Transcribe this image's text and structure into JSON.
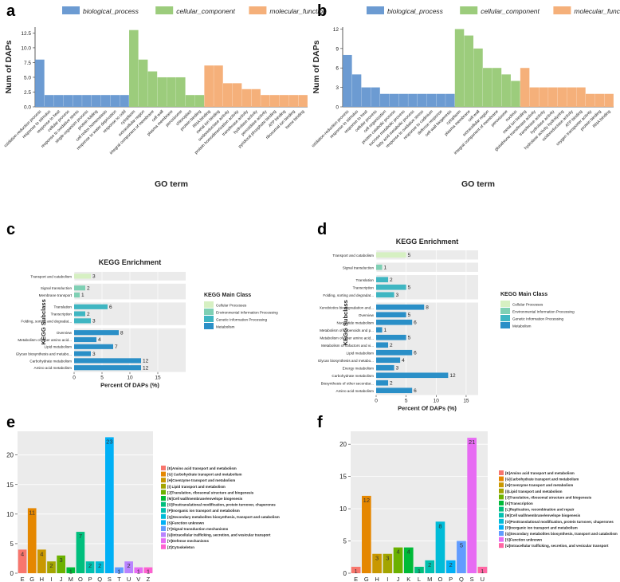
{
  "panel_letters": [
    "a",
    "b",
    "c",
    "d",
    "e",
    "f"
  ],
  "colors": {
    "bp": "#6c9bd2",
    "cc": "#9ccc7c",
    "mf": "#f5b07a",
    "grid_bg": "#ebebeb",
    "kegg_cellular": "#d6f0c2",
    "kegg_env": "#7fd0b4",
    "kegg_genetic": "#3fb6c2",
    "kegg_metab": "#2a8fc7",
    "cog": [
      "#f8766d",
      "#e58700",
      "#c99800",
      "#a3a500",
      "#6bb100",
      "#00ba38",
      "#00bf7d",
      "#00c0af",
      "#00bcd8",
      "#00b0f6",
      "#619cff",
      "#b983ff",
      "#e76bf3",
      "#fd61d1",
      "#ff67a4"
    ]
  },
  "chart_data": [
    {
      "id": "a",
      "type": "bar",
      "xlabel": "GO term",
      "ylabel": "Num of DAPs",
      "ylim": [
        0,
        13.5
      ],
      "yticks": [
        0.0,
        2.5,
        5.0,
        7.5,
        10.0,
        12.5
      ],
      "ytick_labels": [
        "0.0",
        "2.5",
        "5.0",
        "7.5",
        "10.0",
        "12.5"
      ],
      "legend": [
        "biological_process",
        "cellular_component",
        "molecular_function"
      ],
      "categories": [
        "oxidation-reduction process",
        "response to stimulus",
        "response to heat",
        "cellular process",
        "response to oxidative stress",
        "single-organism process",
        "protein folding",
        "cell redox homeostasis",
        "response to water deprivation",
        "response to cold",
        "cytoplasm",
        "extracellular region",
        "integral component of membrane",
        "cell wall",
        "plasma membrane",
        "peroxisome",
        "chloroplast",
        "protein binding",
        "RNA binding",
        "metal ion binding",
        "oxidoreductase activity",
        "protein homodimerization activity",
        "transferase activity",
        "hydrolase activity",
        "peroxidase activity",
        "pyridoxal phosphate binding",
        "ATP binding",
        "ribosomal ion binding",
        "heme binding"
      ],
      "groups": [
        0,
        0,
        0,
        0,
        0,
        0,
        0,
        0,
        0,
        0,
        1,
        1,
        1,
        1,
        1,
        1,
        1,
        1,
        2,
        2,
        2,
        2,
        2,
        2,
        2,
        2,
        2,
        2,
        2
      ],
      "values": [
        8,
        2,
        2,
        2,
        2,
        2,
        2,
        2,
        2,
        2,
        13,
        8,
        6,
        5,
        5,
        5,
        2,
        2,
        7,
        7,
        4,
        4,
        3,
        3,
        2,
        2,
        2,
        2,
        2
      ]
    },
    {
      "id": "b",
      "type": "bar",
      "xlabel": "GO term",
      "ylabel": "Num of DAPs",
      "ylim": [
        0,
        12.3
      ],
      "yticks": [
        0,
        3,
        6,
        9,
        12
      ],
      "ytick_labels": [
        "0",
        "3",
        "6",
        "9",
        "12"
      ],
      "legend": [
        "biological_process",
        "cellular_component",
        "molecular_function"
      ],
      "categories": [
        "oxidation-reduction process",
        "response to stimulus",
        "response to heat",
        "cellular process",
        "cell organization",
        "protein catabolic process",
        "sucrose metabolic process",
        "fatty acid metabolic process",
        "response to oxidative stress",
        "response to cadmium",
        "defense response",
        "cell wall biogenesis",
        "cytoplasm",
        "plasma membrane",
        "cell wall",
        "extracellular region",
        "integral component of membrane",
        "peroxisome",
        "nucleus",
        "metal ion binding",
        "glutathione transferase activity",
        "transferase activity",
        "hydrolase activity",
        "hydrolase activity hydrolyzing",
        "oxidoreductase activity",
        "ATP binding",
        "oxygen transporter activity",
        "protein binding",
        "RNA binding"
      ],
      "groups": [
        0,
        0,
        0,
        0,
        0,
        0,
        0,
        0,
        0,
        0,
        0,
        0,
        1,
        1,
        1,
        1,
        1,
        1,
        1,
        2,
        2,
        2,
        2,
        2,
        2,
        2,
        2,
        2,
        2
      ],
      "values": [
        8,
        5,
        3,
        3,
        2,
        2,
        2,
        2,
        2,
        2,
        2,
        2,
        12,
        11,
        9,
        6,
        6,
        5,
        4,
        6,
        3,
        3,
        3,
        3,
        3,
        3,
        2,
        2,
        2
      ]
    },
    {
      "id": "c",
      "type": "bar",
      "orientation": "horizontal",
      "title": "KEGG Enrichment",
      "xlabel": "Percent Of DAPs (%)",
      "ylabel": "KEGG Subclass",
      "xlim": [
        0,
        20
      ],
      "xticks": [
        0,
        5,
        10,
        15
      ],
      "legend_title": "KEGG Main Class",
      "legend": [
        "Cellular Processes",
        "Environmental Information Processing",
        "Genetic Information Processing",
        "Metabolism"
      ],
      "facets": [
        {
          "class": 0,
          "rows": [
            {
              "label": "Transport and catabolism",
              "value": 3
            }
          ]
        },
        {
          "class": 1,
          "rows": [
            {
              "label": "Signal transduction",
              "value": 2
            },
            {
              "label": "Membrane transport",
              "value": 1
            }
          ]
        },
        {
          "class": 2,
          "rows": [
            {
              "label": "Translation",
              "value": 6
            },
            {
              "label": "Transcription",
              "value": 2
            },
            {
              "label": "Folding, sorting and degradat...",
              "value": 3
            }
          ]
        },
        {
          "class": 3,
          "rows": [
            {
              "label": "Overview",
              "value": 8
            },
            {
              "label": "Metabolism of other amino acid...",
              "value": 4
            },
            {
              "label": "Lipid metabolism",
              "value": 7
            },
            {
              "label": "Glycan biosynthesis and metabo...",
              "value": 3
            },
            {
              "label": "Carbohydrate metabolism",
              "value": 12
            },
            {
              "label": "Amino acid metabolism",
              "value": 12
            }
          ]
        }
      ]
    },
    {
      "id": "d",
      "type": "bar",
      "orientation": "horizontal",
      "title": "KEGG Enrichment",
      "xlabel": "Percent Of DAPs (%)",
      "ylabel": "KEGG Subclass",
      "xlim": [
        0,
        17
      ],
      "xticks": [
        0,
        5,
        10,
        15
      ],
      "legend_title": "KEGG Main Class",
      "legend": [
        "Cellular Processes",
        "Environmental Information Processing",
        "Genetic Information Processing",
        "Metabolism"
      ],
      "facets": [
        {
          "class": 0,
          "rows": [
            {
              "label": "Transport and catabolism",
              "value": 5
            }
          ]
        },
        {
          "class": 1,
          "rows": [
            {
              "label": "Signal transduction",
              "value": 1
            }
          ]
        },
        {
          "class": 2,
          "rows": [
            {
              "label": "Translation",
              "value": 2
            },
            {
              "label": "Transcription",
              "value": 5
            },
            {
              "label": "Folding, sorting and degradat...",
              "value": 3
            }
          ]
        },
        {
          "class": 3,
          "rows": [
            {
              "label": "Xenobiotics biodegradation and...",
              "value": 8
            },
            {
              "label": "Overview",
              "value": 5
            },
            {
              "label": "Nucleotide metabolism",
              "value": 6
            },
            {
              "label": "Metabolism of terpenoids and p...",
              "value": 1
            },
            {
              "label": "Metabolism of other amino acid...",
              "value": 5
            },
            {
              "label": "Metabolism of cofactors and vi...",
              "value": 2
            },
            {
              "label": "Lipid metabolism",
              "value": 6
            },
            {
              "label": "Glycan biosynthesis and metabo...",
              "value": 4
            },
            {
              "label": "Energy metabolism",
              "value": 3
            },
            {
              "label": "Carbohydrate metabolism",
              "value": 12
            },
            {
              "label": "Biosynthesis of other secondar...",
              "value": 2
            },
            {
              "label": "Amino acid metabolism",
              "value": 6
            }
          ]
        }
      ]
    },
    {
      "id": "e",
      "type": "bar",
      "ylim": [
        0,
        24
      ],
      "yticks": [
        0,
        5,
        10,
        15,
        20
      ],
      "categories": [
        "E",
        "G",
        "H",
        "I",
        "J",
        "M",
        "O",
        "P",
        "Q",
        "S",
        "T",
        "U",
        "V",
        "Z"
      ],
      "values": [
        4,
        11,
        4,
        2,
        3,
        1,
        7,
        2,
        2,
        23,
        1,
        2,
        1,
        1
      ],
      "color_index": [
        0,
        1,
        2,
        3,
        4,
        5,
        6,
        7,
        8,
        9,
        10,
        11,
        12,
        13
      ],
      "legend": [
        "[E]Amino acid transport and metabolism",
        "[G]      Carbohydrate transport and metabolism",
        "[H]Coenzyme transport and metabolism",
        "[I]  Lipid transport and metabolism",
        "[J]Translation, ribosomal structure and biogenesis",
        "[M]Cell wall/membrane/envelope biogenesis",
        "[O]Posttranslational modification, protein turnover, chaperones",
        "[P]Inorganic ion transport and metabolism",
        "[Q]Secondary metabolites biosynthesis, transport and catabolism",
        "[S]Function unknown",
        "[T]Signal transduction mechanisms",
        "[U]Intracellular trafficking, secretion, and vesicular transport",
        "[V]Defense mechanisms",
        "[Z]Cytoskeleton"
      ]
    },
    {
      "id": "f",
      "type": "bar",
      "ylim": [
        0,
        22
      ],
      "yticks": [
        0,
        5,
        10,
        15,
        20
      ],
      "categories": [
        "E",
        "G",
        "H",
        "I",
        "J",
        "K",
        "L",
        "M",
        "O",
        "P",
        "Q",
        "S",
        "U"
      ],
      "values": [
        1,
        12,
        3,
        3,
        4,
        4,
        1,
        2,
        8,
        2,
        5,
        21,
        1
      ],
      "color_index": [
        0,
        1,
        2,
        3,
        4,
        5,
        6,
        7,
        8,
        9,
        10,
        12,
        14
      ],
      "legend": [
        "[E]Amino acid transport and metabolism",
        "[G]Carbohydrate transport and metabolism",
        "[H]Coenzyme transport and metabolism",
        "[I]Lipid transport and metabolism",
        "[J]Translation, ribosomal structure and biogenesis",
        "[K]Transcription",
        "[L]Replication, recombination and repair",
        "[M]Cell wall/membrane/envelope biogenesis",
        "[O]Posttranslational modification, protein turnover, chaperones",
        "[P]Inorganic ion transport and metabolism",
        "[Q]Secondary metabolites biosynthesis, transport and catabolism",
        "[S]Function unknown",
        "[U]Intracellular trafficking, secretion, and vesicular transport"
      ],
      "legend_color_index": [
        0,
        1,
        2,
        3,
        4,
        5,
        6,
        7,
        8,
        9,
        10,
        12,
        14
      ]
    }
  ]
}
